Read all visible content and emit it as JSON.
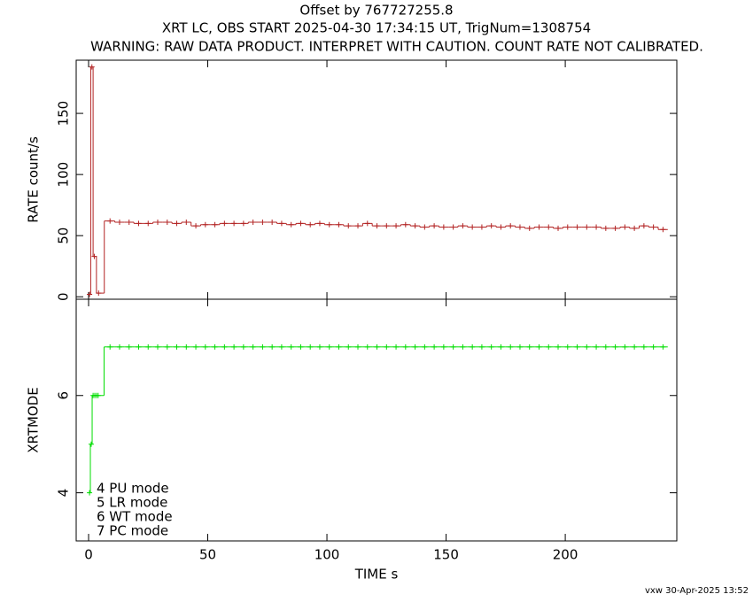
{
  "chart_data": [
    {
      "type": "line",
      "title": "Offset by 767727255.8",
      "subtitle": "XRT LC, OBS START 2025-04-30 17:34:15 UT, TrigNum=1308754",
      "warning": "WARNING: RAW DATA PRODUCT. INTERPRET WITH CAUTION. COUNT RATE NOT CALIBRATED.",
      "y_label": "RATE  count/s",
      "xlim": [
        -5.2,
        246.8
      ],
      "xticks": [
        0,
        50,
        100,
        150,
        200
      ],
      "ylim": [
        -2,
        193.5
      ],
      "yticks": [
        0,
        50,
        100,
        150
      ],
      "series": [
        {
          "color": "#b22222",
          "x": [
            0.4,
            1.4,
            2.4,
            4.2,
            9,
            13,
            17,
            21,
            25,
            29,
            33,
            37,
            41,
            45,
            49,
            53,
            57,
            61,
            65,
            69,
            73,
            77,
            81,
            85,
            89,
            93,
            97,
            101,
            105,
            109,
            113,
            117,
            121,
            125,
            129,
            133,
            137,
            141,
            145,
            149,
            153,
            157,
            161,
            165,
            169,
            173,
            177,
            181,
            185,
            189,
            193,
            197,
            201,
            205,
            209,
            213,
            217,
            221,
            225,
            229,
            233,
            237,
            241
          ],
          "values": [
            2,
            188,
            33,
            3,
            62,
            61,
            61,
            60,
            60,
            61,
            61,
            60,
            61,
            58,
            59,
            59,
            60,
            60,
            60,
            61,
            61,
            61,
            60,
            59,
            60,
            59,
            60,
            59,
            59,
            58,
            58,
            60,
            58,
            58,
            58,
            59,
            58,
            57,
            58,
            57,
            57,
            58,
            57,
            57,
            58,
            57,
            58,
            57,
            56,
            57,
            57,
            56,
            57,
            57,
            57,
            57,
            56,
            56,
            57,
            56,
            58,
            57,
            55
          ]
        }
      ]
    },
    {
      "type": "line",
      "y_label": "XRTMODE",
      "x_label": "TIME  s",
      "xlim": [
        -5.2,
        246.8
      ],
      "xticks": [
        0,
        50,
        100,
        150,
        200
      ],
      "ylim": [
        3.01,
        7.98
      ],
      "yticks": [
        4,
        6
      ],
      "annotations": [
        "4  PU  mode",
        "5  LR  mode",
        "6  WT  mode",
        "7  PC  mode"
      ],
      "series": [
        {
          "color": "#00dd00",
          "x": [
            0.4,
            1.1,
            1.9,
            2.6,
            3.3,
            4.0,
            9,
            13,
            17,
            21,
            25,
            29,
            33,
            37,
            41,
            45,
            49,
            53,
            57,
            61,
            65,
            69,
            73,
            77,
            81,
            85,
            89,
            93,
            97,
            101,
            105,
            109,
            113,
            117,
            121,
            125,
            129,
            133,
            137,
            141,
            145,
            149,
            153,
            157,
            161,
            165,
            169,
            173,
            177,
            181,
            185,
            189,
            193,
            197,
            201,
            205,
            209,
            213,
            217,
            221,
            225,
            229,
            233,
            237,
            241
          ],
          "values": [
            4,
            5,
            6,
            6,
            6,
            6,
            7,
            7,
            7,
            7,
            7,
            7,
            7,
            7,
            7,
            7,
            7,
            7,
            7,
            7,
            7,
            7,
            7,
            7,
            7,
            7,
            7,
            7,
            7,
            7,
            7,
            7,
            7,
            7,
            7,
            7,
            7,
            7,
            7,
            7,
            7,
            7,
            7,
            7,
            7,
            7,
            7,
            7,
            7,
            7,
            7,
            7,
            7,
            7,
            7,
            7,
            7,
            7,
            7,
            7,
            7,
            7,
            7,
            7,
            7
          ]
        }
      ]
    }
  ],
  "footer": "vxw 30-Apr-2025 13:52"
}
